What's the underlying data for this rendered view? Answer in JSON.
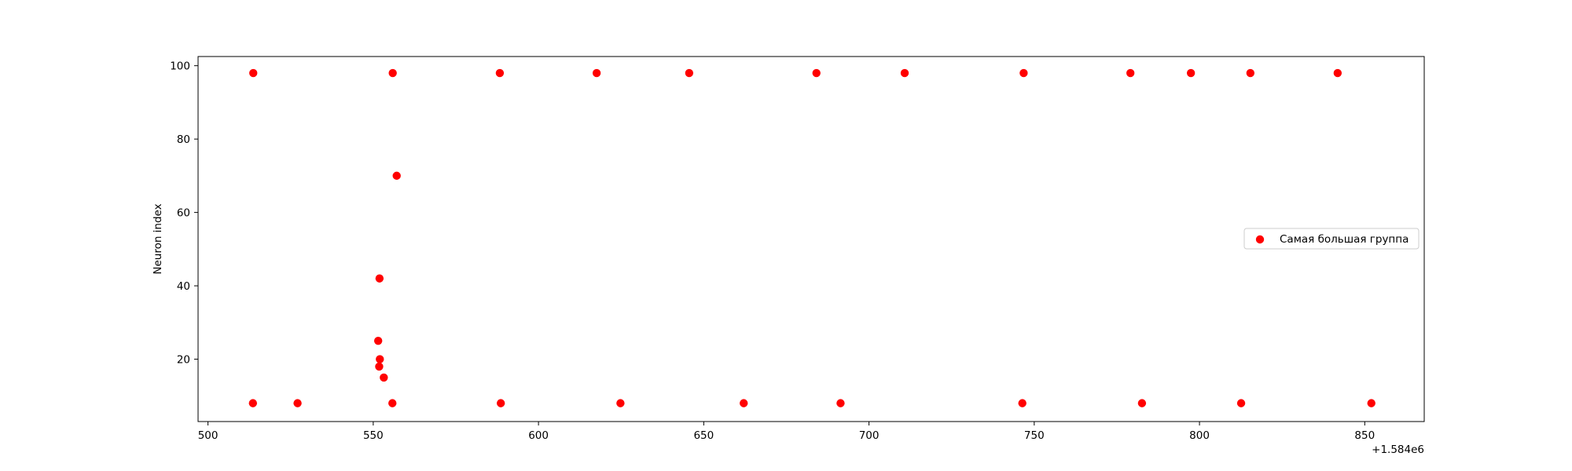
{
  "chart_data": {
    "type": "scatter",
    "title": "",
    "xlabel": "",
    "ylabel": "Neuron index",
    "x_offset_label": "+1.584e6",
    "xlim": [
      497,
      868
    ],
    "ylim": [
      3,
      102.5
    ],
    "x_ticks": [
      "500",
      "550",
      "600",
      "650",
      "700",
      "750",
      "800",
      "850"
    ],
    "y_ticks": [
      "20",
      "40",
      "60",
      "80",
      "100"
    ],
    "grid": false,
    "legend_position": "center-right",
    "series": [
      {
        "name": "Самая большая группа",
        "color": "#ff0000",
        "points": [
          {
            "x": 513.7,
            "y": 98
          },
          {
            "x": 555.9,
            "y": 98
          },
          {
            "x": 588.3,
            "y": 98
          },
          {
            "x": 617.6,
            "y": 98
          },
          {
            "x": 645.6,
            "y": 98
          },
          {
            "x": 684.1,
            "y": 98
          },
          {
            "x": 710.8,
            "y": 98
          },
          {
            "x": 746.8,
            "y": 98
          },
          {
            "x": 779.1,
            "y": 98
          },
          {
            "x": 797.4,
            "y": 98
          },
          {
            "x": 815.4,
            "y": 98
          },
          {
            "x": 841.8,
            "y": 98
          },
          {
            "x": 557.1,
            "y": 70
          },
          {
            "x": 551.9,
            "y": 42
          },
          {
            "x": 551.5,
            "y": 25
          },
          {
            "x": 552.0,
            "y": 20
          },
          {
            "x": 551.8,
            "y": 18
          },
          {
            "x": 553.2,
            "y": 15
          },
          {
            "x": 513.6,
            "y": 8
          },
          {
            "x": 527.1,
            "y": 8
          },
          {
            "x": 555.8,
            "y": 8
          },
          {
            "x": 588.6,
            "y": 8
          },
          {
            "x": 624.8,
            "y": 8
          },
          {
            "x": 662.1,
            "y": 8
          },
          {
            "x": 691.4,
            "y": 8
          },
          {
            "x": 746.4,
            "y": 8
          },
          {
            "x": 782.6,
            "y": 8
          },
          {
            "x": 812.6,
            "y": 8
          },
          {
            "x": 852.0,
            "y": 8
          }
        ]
      }
    ]
  }
}
